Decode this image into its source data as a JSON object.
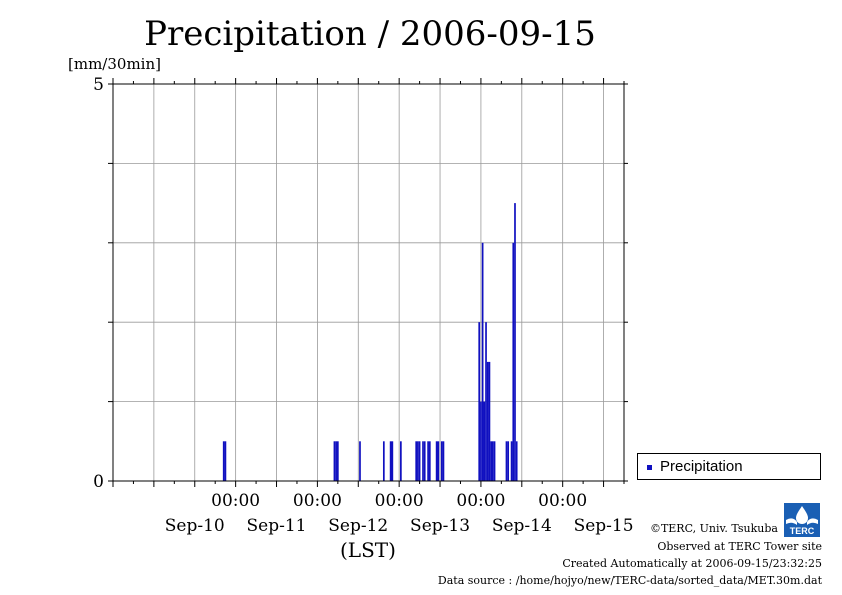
{
  "chart_data": {
    "type": "bar",
    "title": "Precipitation / 2006-09-15",
    "ylabel": "[mm/30min]",
    "xlabel": "(LST)",
    "ylim": [
      0,
      5
    ],
    "y_tick_labels": [
      "0",
      "5"
    ],
    "xlim": [
      "2006-09-09T12:00",
      "2006-09-15T18:00"
    ],
    "x_tick_time_labels": [
      "00:00",
      "00:00",
      "00:00",
      "00:00",
      "00:00"
    ],
    "x_tick_time_dates": [
      "2006-09-11T00:00",
      "2006-09-12T00:00",
      "2006-09-13T00:00",
      "2006-09-14T00:00",
      "2006-09-15T00:00"
    ],
    "x_date_labels": [
      "Sep-10",
      "Sep-11",
      "Sep-12",
      "Sep-13",
      "Sep-14",
      "Sep-15"
    ],
    "x_date_centers": [
      "2006-09-10T12:00",
      "2006-09-11T12:00",
      "2006-09-12T12:00",
      "2006-09-13T12:00",
      "2006-09-14T12:00",
      "2006-09-15T12:00"
    ],
    "grid": true,
    "bar_color": "#1010c0",
    "legend": {
      "position": "right",
      "entries": [
        "Precipitation"
      ]
    },
    "series": [
      {
        "name": "Precipitation",
        "points": [
          [
            "2006-09-10T20:30",
            0.5
          ],
          [
            "2006-09-10T21:00",
            0.5
          ],
          [
            "2006-09-12T05:00",
            0.5
          ],
          [
            "2006-09-12T05:30",
            0.5
          ],
          [
            "2006-09-12T06:00",
            0.5
          ],
          [
            "2006-09-12T12:30",
            0.5
          ],
          [
            "2006-09-12T19:30",
            0.5
          ],
          [
            "2006-09-12T21:30",
            0.5
          ],
          [
            "2006-09-12T22:00",
            0.5
          ],
          [
            "2006-09-13T00:30",
            0.5
          ],
          [
            "2006-09-13T05:00",
            0.5
          ],
          [
            "2006-09-13T05:30",
            0.5
          ],
          [
            "2006-09-13T06:00",
            0.5
          ],
          [
            "2006-09-13T07:00",
            0.5
          ],
          [
            "2006-09-13T07:30",
            0.5
          ],
          [
            "2006-09-13T08:30",
            0.5
          ],
          [
            "2006-09-13T09:00",
            0.5
          ],
          [
            "2006-09-13T11:00",
            0.5
          ],
          [
            "2006-09-13T11:30",
            0.5
          ],
          [
            "2006-09-13T12:30",
            0.5
          ],
          [
            "2006-09-13T13:00",
            0.5
          ],
          [
            "2006-09-13T23:30",
            2.0
          ],
          [
            "2006-09-14T00:00",
            1.0
          ],
          [
            "2006-09-14T00:30",
            3.0
          ],
          [
            "2006-09-14T01:00",
            1.0
          ],
          [
            "2006-09-14T01:30",
            2.0
          ],
          [
            "2006-09-14T02:00",
            1.5
          ],
          [
            "2006-09-14T02:30",
            1.5
          ],
          [
            "2006-09-14T03:00",
            0.5
          ],
          [
            "2006-09-14T03:30",
            0.5
          ],
          [
            "2006-09-14T04:00",
            0.5
          ],
          [
            "2006-09-14T07:30",
            0.5
          ],
          [
            "2006-09-14T08:00",
            0.5
          ],
          [
            "2006-09-14T09:00",
            0.5
          ],
          [
            "2006-09-14T09:30",
            3.0
          ],
          [
            "2006-09-14T10:00",
            3.5
          ],
          [
            "2006-09-14T10:30",
            0.5
          ]
        ]
      }
    ]
  },
  "legend": {
    "label": "Precipitation",
    "swatch_color": "#1010c0"
  },
  "credits": {
    "copyright": "©TERC, Univ. Tsukuba",
    "site": "Observed at TERC Tower site",
    "created": "Created Automatically at 2006-09-15/23:32:25",
    "source": "Data source : /home/hojyo/new/TERC-data/sorted_data/MET.30m.dat"
  },
  "logo": {
    "text": "TERC",
    "color": "#1a5fb4"
  }
}
